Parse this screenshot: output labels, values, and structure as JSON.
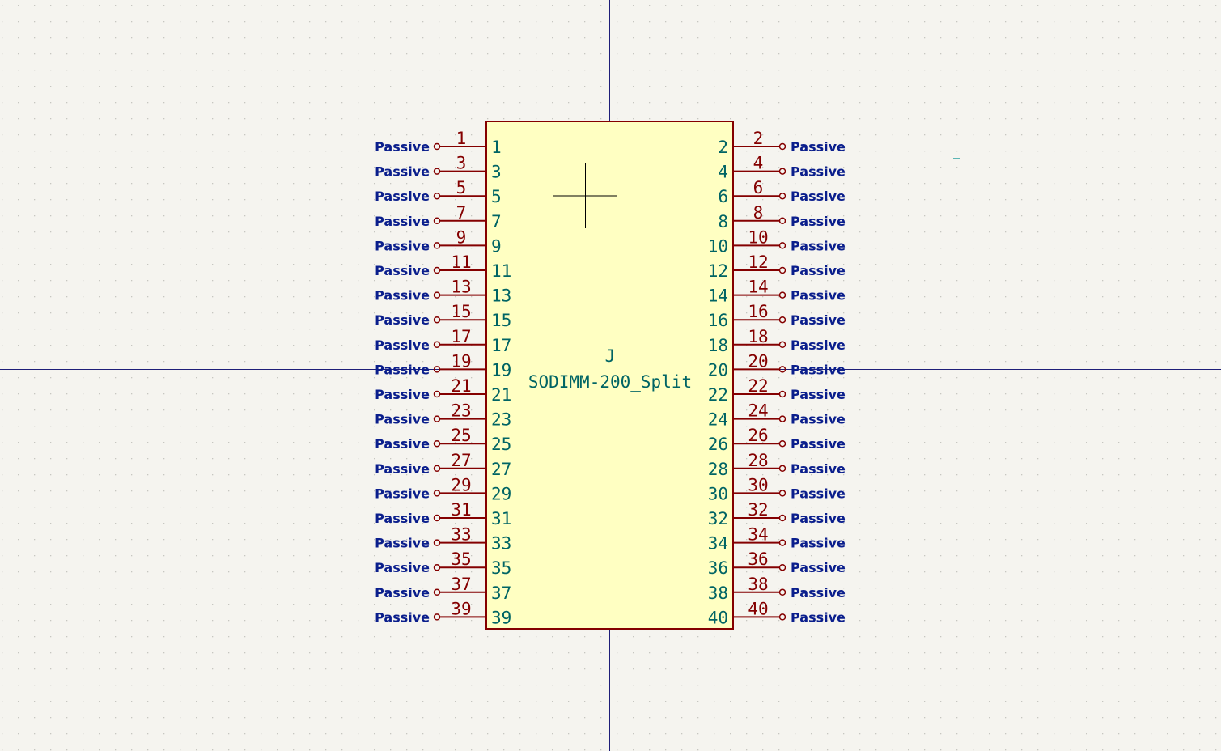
{
  "symbol": {
    "reference": "J",
    "value": "SODIMM-200_Split",
    "pin_type": "Passive",
    "left_pins": [
      "1",
      "3",
      "5",
      "7",
      "9",
      "11",
      "13",
      "15",
      "17",
      "19",
      "21",
      "23",
      "25",
      "27",
      "29",
      "31",
      "33",
      "35",
      "37",
      "39"
    ],
    "right_pins": [
      "2",
      "4",
      "6",
      "8",
      "10",
      "12",
      "14",
      "16",
      "18",
      "20",
      "22",
      "24",
      "26",
      "28",
      "30",
      "32",
      "34",
      "36",
      "38",
      "40"
    ]
  },
  "colors": {
    "background": "#f5f4ef",
    "grid_dot": "#c6c6c0",
    "axis": "#1e1e78",
    "body_fill": "#ffffc2",
    "body_stroke": "#840000",
    "pin_line": "#840000",
    "pin_number": "#840000",
    "pin_name": "#006464",
    "pin_type": "#0a1e8c",
    "anchor": "#000000"
  }
}
